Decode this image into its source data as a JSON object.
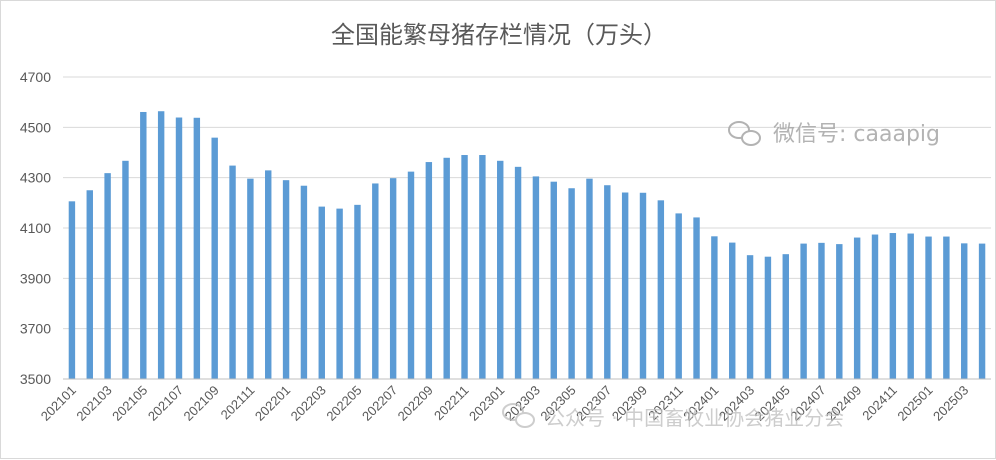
{
  "chart_data": {
    "type": "bar",
    "title": "全国能繁母猪存栏情况（万头）",
    "xlabel": "",
    "ylabel": "",
    "ylim": [
      3500,
      4700
    ],
    "yticks": [
      3500,
      3700,
      3900,
      4100,
      4300,
      4500,
      4700
    ],
    "grid": true,
    "legend": "none",
    "colors": {
      "bar": "#5b9bd5",
      "grid": "#d9d9d9",
      "axis": "#bfbfbf",
      "text": "#595959"
    },
    "categories": [
      "202101",
      "202102",
      "202103",
      "202104",
      "202105",
      "202106",
      "202107",
      "202108",
      "202109",
      "202110",
      "202111",
      "202112",
      "202201",
      "202202",
      "202203",
      "202204",
      "202205",
      "202206",
      "202207",
      "202208",
      "202209",
      "202210",
      "202211",
      "202212",
      "202301",
      "202302",
      "202303",
      "202304",
      "202305",
      "202306",
      "202307",
      "202308",
      "202309",
      "202310",
      "202311",
      "202312",
      "202401",
      "202402",
      "202403",
      "202404",
      "202405",
      "202406",
      "202407",
      "202408",
      "202409",
      "202410",
      "202411",
      "202412",
      "202501",
      "202502",
      "202503",
      "202504"
    ],
    "xtick_labels": [
      "202101",
      "202103",
      "202105",
      "202107",
      "202109",
      "202111",
      "202201",
      "202203",
      "202205",
      "202207",
      "202209",
      "202211",
      "202301",
      "202303",
      "202305",
      "202307",
      "202309",
      "202311",
      "202401",
      "202403",
      "202405",
      "202407",
      "202409",
      "202411",
      "202501",
      "202503"
    ],
    "values": [
      4206,
      4250,
      4318,
      4367,
      4561,
      4564,
      4539,
      4538,
      4459,
      4348,
      4296,
      4329,
      4290,
      4268,
      4185,
      4177,
      4192,
      4277,
      4298,
      4324,
      4362,
      4379,
      4390,
      4390,
      4367,
      4343,
      4305,
      4284,
      4258,
      4296,
      4270,
      4241,
      4240,
      4210,
      4158,
      4142,
      4067,
      4042,
      3992,
      3986,
      3996,
      4038,
      4041,
      4036,
      4062,
      4074,
      4080,
      4078,
      4066,
      4066,
      4039,
      4038
    ]
  },
  "watermarks": {
    "top_right": "微信号: caaapig",
    "bottom": "公众号 · 中国畜牧业协会猪业分会"
  }
}
